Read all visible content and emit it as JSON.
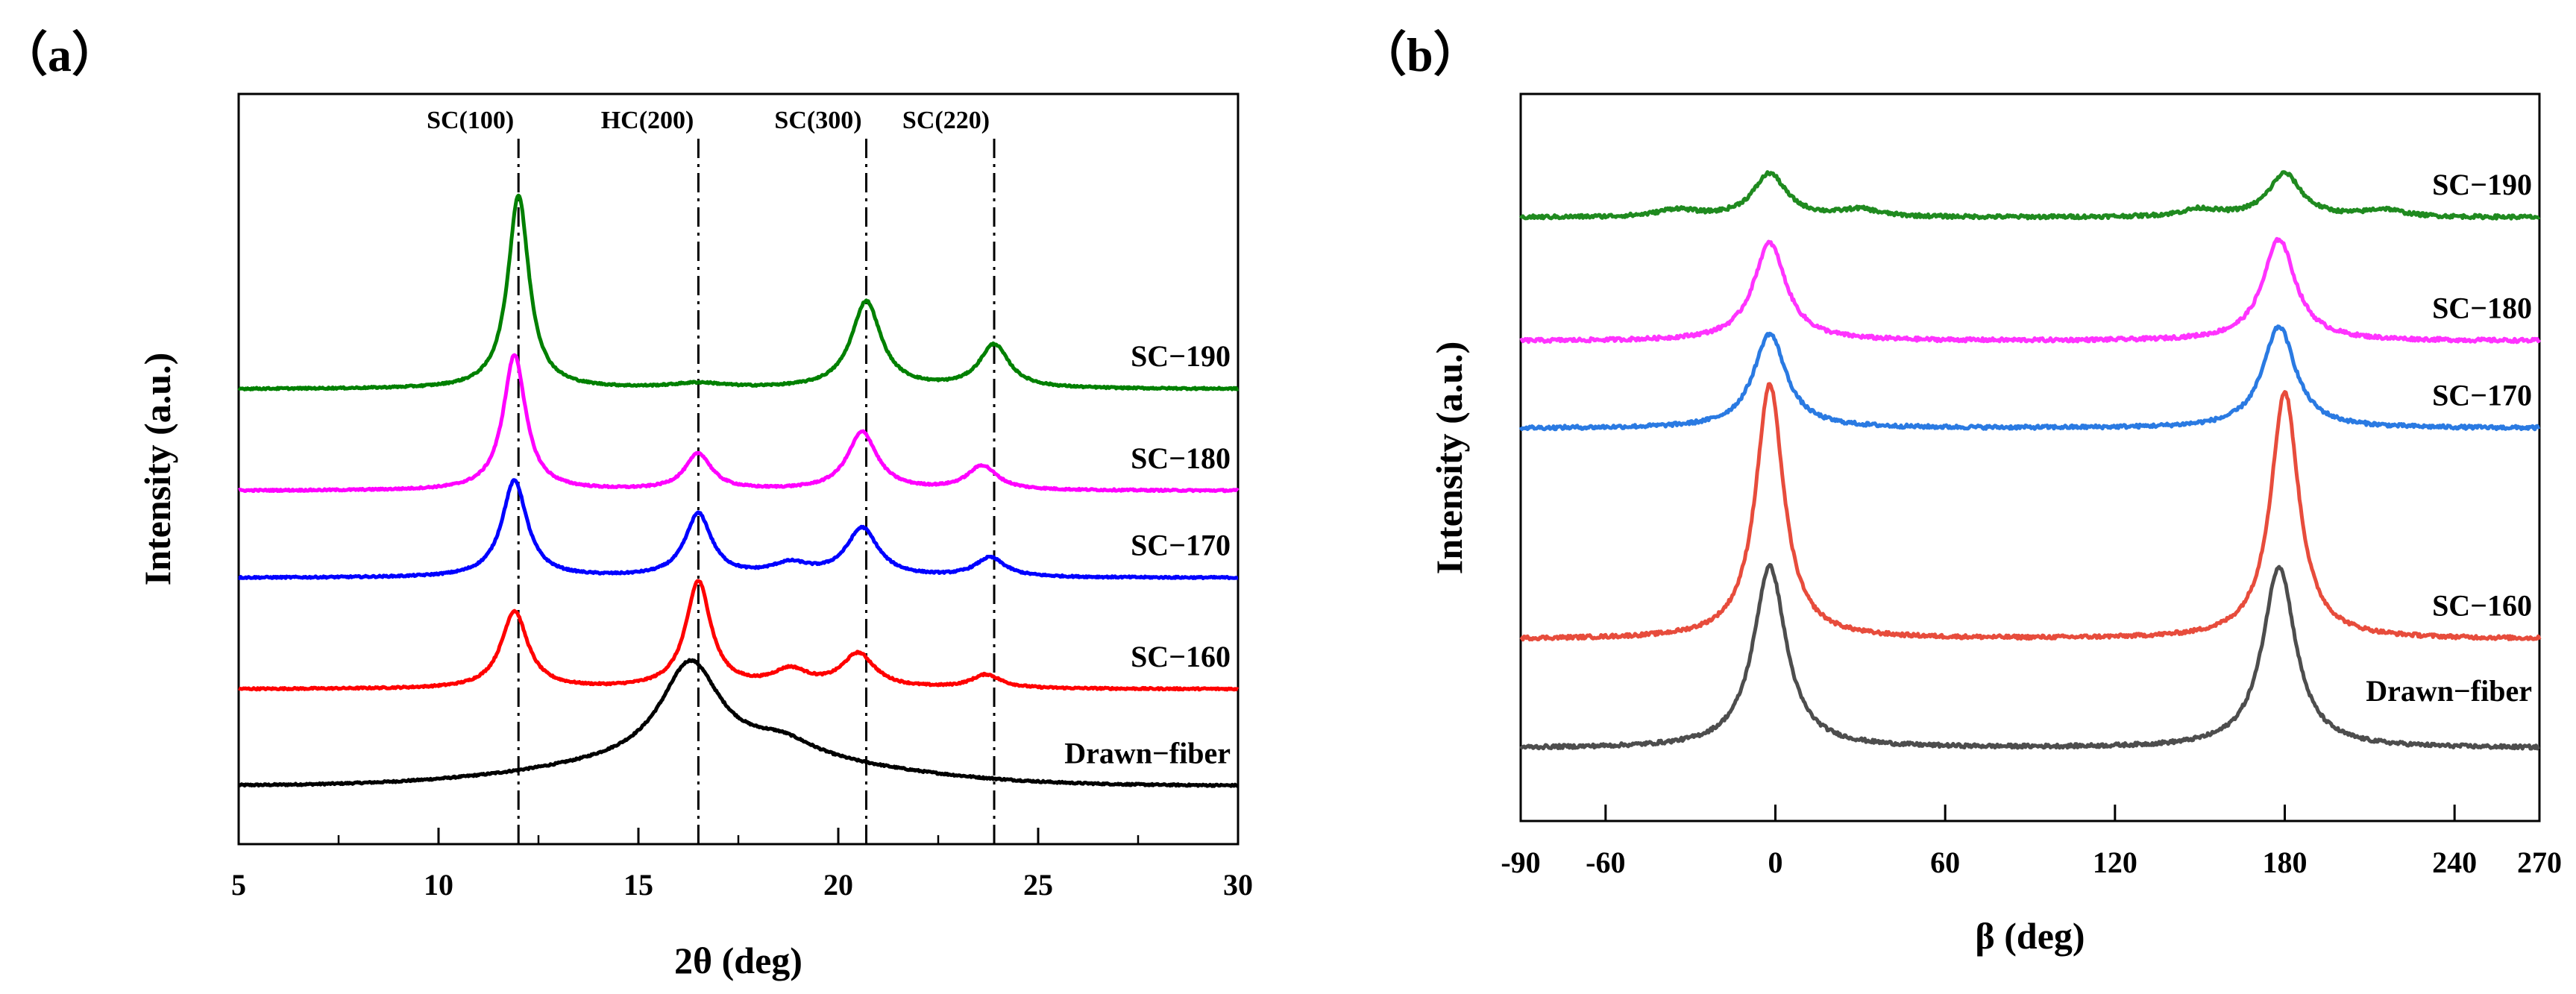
{
  "chart_data": [
    {
      "panel_label": "（a）",
      "type": "line",
      "xlabel": "2θ (deg)",
      "ylabel": "Intensity (a.u.)",
      "xlim": [
        5,
        30
      ],
      "xticks": [
        5,
        10,
        15,
        20,
        25,
        30
      ],
      "ylim": [
        0,
        15.5
      ],
      "yticks_shown": false,
      "peak_lines": [
        {
          "label": "SC(100)",
          "x": 12.0
        },
        {
          "label": "HC(200)",
          "x": 16.5
        },
        {
          "label": "SC(300)",
          "x": 20.7
        },
        {
          "label": "SC(220)",
          "x": 23.9
        }
      ],
      "series": [
        {
          "name": "Drawn−fiber",
          "color": "#000000",
          "baseline": 1.2,
          "curve": {
            "rise": {
              "amp": 0.55,
              "w": 5.5,
              "center": 17
            },
            "peaks": [
              [
                16.3,
                2.0,
                0.9
              ],
              [
                18.6,
                0.35,
                1.0
              ]
            ]
          }
        },
        {
          "name": "SC−160",
          "color": "#ff0000",
          "baseline": 3.2,
          "curve": {
            "rise": {
              "amp": 0.0,
              "w": 5,
              "center": 17
            },
            "peaks": [
              [
                11.9,
                1.6,
                0.4
              ],
              [
                16.5,
                2.2,
                0.38
              ],
              [
                18.8,
                0.35,
                0.55
              ],
              [
                20.5,
                0.7,
                0.5
              ],
              [
                23.7,
                0.28,
                0.45
              ]
            ]
          }
        },
        {
          "name": "SC−170",
          "color": "#0000ff",
          "baseline": 5.5,
          "curve": {
            "rise": {
              "amp": 0.0,
              "w": 5,
              "center": 17
            },
            "peaks": [
              [
                11.9,
                2.0,
                0.38
              ],
              [
                16.5,
                1.3,
                0.4
              ],
              [
                18.8,
                0.25,
                0.6
              ],
              [
                20.6,
                1.0,
                0.48
              ],
              [
                23.8,
                0.4,
                0.45
              ]
            ]
          }
        },
        {
          "name": "SC−180",
          "color": "#ff00ff",
          "baseline": 7.3,
          "curve": {
            "rise": {
              "amp": 0.0,
              "w": 5,
              "center": 17
            },
            "peaks": [
              [
                11.9,
                2.8,
                0.34
              ],
              [
                16.5,
                0.75,
                0.4
              ],
              [
                20.6,
                1.2,
                0.45
              ],
              [
                23.6,
                0.5,
                0.45
              ]
            ]
          }
        },
        {
          "name": "SC−190",
          "color": "#008000",
          "baseline": 9.4,
          "curve": {
            "rise": {
              "amp": 0.0,
              "w": 5,
              "center": 17
            },
            "peaks": [
              [
                12.0,
                4.0,
                0.32
              ],
              [
                16.5,
                0.1,
                0.8
              ],
              [
                20.7,
                1.8,
                0.45
              ],
              [
                23.9,
                0.9,
                0.45
              ]
            ]
          }
        }
      ]
    },
    {
      "panel_label": "（b）",
      "type": "line",
      "xlabel": "β (deg)",
      "ylabel": "Intensity (a.u.)",
      "xlim": [
        -90,
        270
      ],
      "xticks": [
        -90,
        -60,
        0,
        60,
        120,
        180,
        240,
        270
      ],
      "ylim": [
        0,
        10
      ],
      "yticks_shown": false,
      "series": [
        {
          "name": "Drawn−fiber",
          "color": "#4d4d4d",
          "baseline": 1.0,
          "curve": {
            "peaks": [
              [
                -2,
                2.5,
                7
              ],
              [
                178,
                2.5,
                7
              ]
            ]
          }
        },
        {
          "name": "SC−160",
          "color": "#e74c3c",
          "baseline": 2.5,
          "curve": {
            "peaks": [
              [
                -2,
                3.5,
                6
              ],
              [
                180,
                3.4,
                6
              ]
            ]
          }
        },
        {
          "name": "SC−170",
          "color": "#2a7ae2",
          "baseline": 5.4,
          "curve": {
            "peaks": [
              [
                -2,
                1.3,
                7
              ],
              [
                178,
                1.4,
                7
              ]
            ]
          }
        },
        {
          "name": "SC−180",
          "color": "#ff33ff",
          "baseline": 6.6,
          "curve": {
            "peaks": [
              [
                -2,
                1.35,
                7
              ],
              [
                178,
                1.4,
                7
              ]
            ]
          }
        },
        {
          "name": "SC−190",
          "color": "#1f8a1f",
          "baseline": 8.3,
          "curve": {
            "peaks": [
              [
                -2,
                0.6,
                7
              ],
              [
                180,
                0.6,
                7
              ],
              [
                -35,
                0.1,
                8
              ],
              [
                30,
                0.1,
                8
              ],
              [
                150,
                0.1,
                8
              ],
              [
                215,
                0.1,
                8
              ]
            ]
          }
        }
      ]
    }
  ]
}
